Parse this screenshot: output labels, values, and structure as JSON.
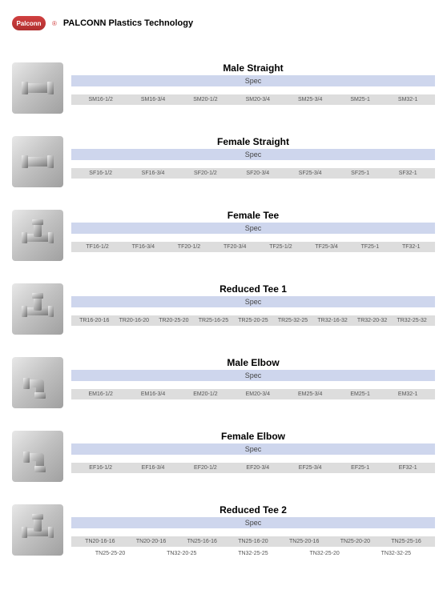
{
  "brand": {
    "logo_text": "Palconn",
    "name": "PALCONN Plastics Technology",
    "logo_bg": "#c03838",
    "reg_mark": "®"
  },
  "spec_label": "Spec",
  "colors": {
    "spec_header_bg": "#ced6ed",
    "spec_row_bg": "#dddddd",
    "text": "#000000",
    "spec_text": "#555555"
  },
  "products": [
    {
      "title": "Male Straight",
      "icon": "straight",
      "specs": [
        "SM16-1/2",
        "SM16-3/4",
        "SM20-1/2",
        "SM20-3/4",
        "SM25-3/4",
        "SM25-1",
        "SM32-1"
      ]
    },
    {
      "title": "Female Straight",
      "icon": "straight",
      "specs": [
        "SF16-1/2",
        "SF16-3/4",
        "SF20-1/2",
        "SF20-3/4",
        "SF25-3/4",
        "SF25-1",
        "SF32-1"
      ]
    },
    {
      "title": "Female Tee",
      "icon": "tee",
      "specs": [
        "TF16-1/2",
        "TF16-3/4",
        "TF20-1/2",
        "TF20-3/4",
        "TF25-1/2",
        "TF25-3/4",
        "TF25-1",
        "TF32-1"
      ]
    },
    {
      "title": "Reduced Tee 1",
      "icon": "tee",
      "specs": [
        "TR16-20-16",
        "TR20-16-20",
        "TR20-25-20",
        "TR25-16-25",
        "TR25-20-25",
        "TR25-32-25",
        "TR32-16-32",
        "TR32-20-32",
        "TR32-25-32"
      ]
    },
    {
      "title": "Male Elbow",
      "icon": "elbow",
      "specs": [
        "EM16-1/2",
        "EM16-3/4",
        "EM20-1/2",
        "EM20-3/4",
        "EM25-3/4",
        "EM25-1",
        "EM32-1"
      ]
    },
    {
      "title": "Female Elbow",
      "icon": "elbow",
      "specs": [
        "EF16-1/2",
        "EF16-3/4",
        "EF20-1/2",
        "EF20-3/4",
        "EF25-3/4",
        "EF25-1",
        "EF32-1"
      ]
    },
    {
      "title": "Reduced Tee 2",
      "icon": "tee",
      "specs": [
        "TN20-16-16",
        "TN20-20-16",
        "TN25-16-16",
        "TN25-16-20",
        "TN25-20-16",
        "TN25-20-20",
        "TN25-25-16"
      ],
      "specs2": [
        "TN25-25-20",
        "TN32-20-25",
        "TN32-25-25",
        "TN32-25-20",
        "TN32-32-25"
      ]
    }
  ]
}
